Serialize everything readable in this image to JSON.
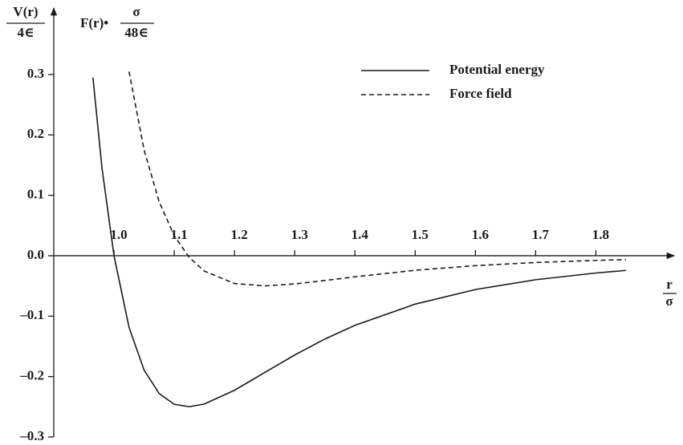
{
  "chart_data": {
    "type": "line",
    "ylabel_numerator": "V(r)",
    "ylabel_denominator": "4∈",
    "force_label_prefix": "F(r)•",
    "force_label_numerator": "σ",
    "force_label_denominator": "48∈",
    "xlabel_numerator": "r",
    "xlabel_denominator": "σ",
    "x": [
      0.965,
      0.98,
      1.0,
      1.025,
      1.05,
      1.075,
      1.1,
      1.125,
      1.15,
      1.2,
      1.25,
      1.3,
      1.35,
      1.4,
      1.5,
      1.6,
      1.7,
      1.8,
      1.85
    ],
    "series": [
      {
        "name": "Potential energy",
        "color": "#1a1a1a",
        "style": "solid",
        "values": [
          0.295,
          0.1455,
          0,
          -0.1187,
          -0.1894,
          -0.2281,
          -0.2459,
          -0.2499,
          -0.2454,
          -0.2227,
          -0.1934,
          -0.1643,
          -0.1379,
          -0.1152,
          -0.0801,
          -0.056,
          -0.0397,
          -0.0286,
          -0.0243
        ]
      },
      {
        "name": "Force field",
        "color": "#1a1a1a",
        "style": "dashed",
        "values": [
          null,
          null,
          null,
          0.3048,
          0.175,
          0.0892,
          0.033,
          -0.0029,
          -0.0254,
          -0.046,
          -0.0499,
          -0.0467,
          -0.041,
          -0.0349,
          -0.0241,
          -0.0164,
          -0.0112,
          -0.0077,
          -0.0064
        ]
      }
    ],
    "xlim": [
      0.9,
      1.93
    ],
    "ylim": [
      -0.3,
      0.41
    ],
    "xticks": [
      {
        "value": 1.0,
        "label": "1.0"
      },
      1.1,
      1.2,
      1.3,
      1.4,
      1.5,
      1.6,
      1.7,
      1.8
    ],
    "yticks": [
      {
        "value": -0.3,
        "label": "–0.3"
      },
      {
        "value": -0.2,
        "label": "–0.2"
      },
      {
        "value": -0.1,
        "label": "–0.1"
      },
      {
        "value": 0,
        "label": "0.0"
      },
      0.1,
      0.2,
      0.3
    ],
    "legend": "upper right"
  }
}
